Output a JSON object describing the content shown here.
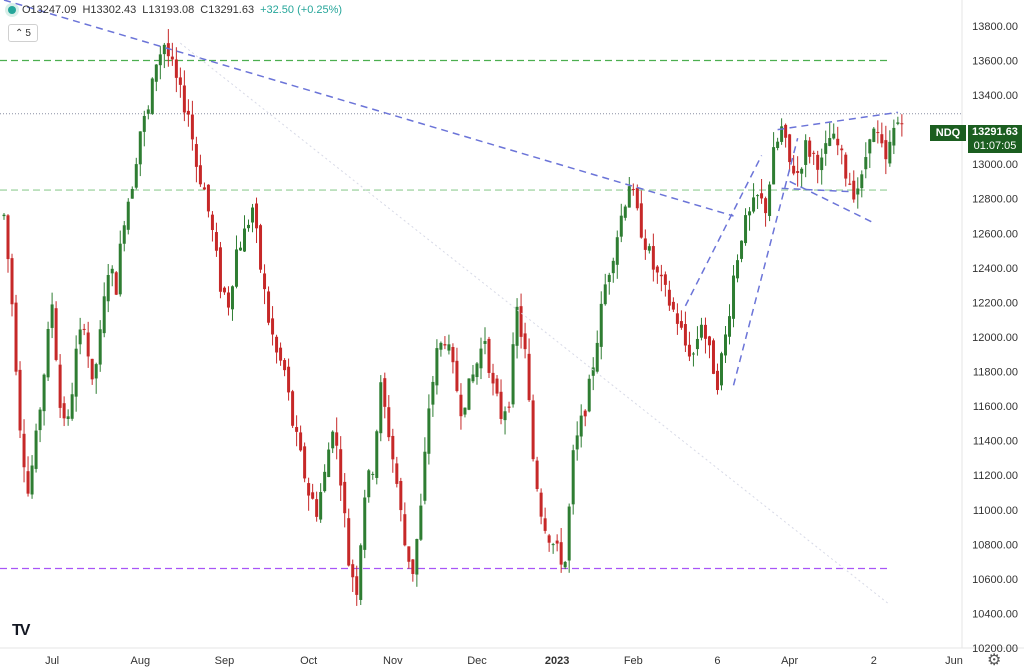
{
  "header": {
    "open": "O13247.09",
    "high": "H13302.43",
    "low": "L13193.08",
    "close": "C13291.63",
    "change": "+32.50 (+0.25%)",
    "indicators_count": "5"
  },
  "price_tag": {
    "symbol": "NDQ",
    "price": "13291.63",
    "countdown": "01:07:05"
  },
  "colors": {
    "up": "#2e7d32",
    "down": "#c62828",
    "support": "#a855f7",
    "resistance": "#4caf50",
    "trend": "#6b74d8"
  },
  "chart_data": {
    "type": "candlestick",
    "title": "",
    "ylim": [
      10200,
      13950
    ],
    "y_ticks": [
      10200,
      10400,
      10600,
      10800,
      11000,
      11200,
      11400,
      11600,
      11800,
      12000,
      12200,
      12400,
      12600,
      12800,
      13000,
      13200,
      13400,
      13600,
      13800
    ],
    "y_tick_labels": [
      "10200.00",
      "10400.00",
      "10600.00",
      "10800.00",
      "11000.00",
      "11200.00",
      "11400.00",
      "11600.00",
      "11800.00",
      "12000.00",
      "12200.00",
      "12400.00",
      "12600.00",
      "12800.00",
      "13000.00",
      "13200.00",
      "13400.00",
      "13600.00",
      "13800.00"
    ],
    "x_tick_labels": [
      "Jul",
      "Aug",
      "Sep",
      "Oct",
      "Nov",
      "Dec",
      "2023",
      "Feb",
      "6",
      "Apr",
      "2",
      "Jun"
    ],
    "x_tick_index": [
      12,
      34,
      55,
      76,
      97,
      118,
      138,
      157,
      178,
      196,
      217,
      237
    ],
    "bars_total": 240,
    "levels": [
      {
        "name": "resistance-high",
        "value": 13600,
        "style": "dashed",
        "color": "#4caf50"
      },
      {
        "name": "resistance-mid",
        "value": 12850,
        "style": "dashed",
        "color": "#a5d6a7"
      },
      {
        "name": "support-low",
        "value": 10660,
        "style": "dashed",
        "color": "#a855f7"
      },
      {
        "name": "last-price",
        "value": 13291.63,
        "style": "dotted",
        "color": "#8a8fa3"
      }
    ],
    "trendlines": [
      {
        "name": "major-downtrend",
        "points": [
          [
            0,
            13950
          ],
          [
            182,
            12700
          ]
        ]
      },
      {
        "name": "faint-downtrend",
        "points": [
          [
            44,
            13700
          ],
          [
            221,
            10450
          ]
        ]
      },
      {
        "name": "wedge-upper-left",
        "points": [
          [
            170,
            12180
          ],
          [
            189,
            13050
          ]
        ]
      },
      {
        "name": "wedge-lower-left",
        "points": [
          [
            182,
            11720
          ],
          [
            198,
            13150
          ]
        ]
      },
      {
        "name": "channel-top",
        "points": [
          [
            193,
            13200
          ],
          [
            223,
            13300
          ]
        ]
      },
      {
        "name": "channel-bottom",
        "points": [
          [
            196,
            12900
          ],
          [
            217,
            12660
          ]
        ]
      },
      {
        "name": "channel-mid",
        "points": [
          [
            194,
            12860
          ],
          [
            212,
            12840
          ]
        ]
      }
    ],
    "anchors": [
      [
        0,
        12700
      ],
      [
        2,
        12200
      ],
      [
        4,
        11500
      ],
      [
        6,
        11100
      ],
      [
        8,
        11400
      ],
      [
        10,
        11800
      ],
      [
        12,
        12200
      ],
      [
        14,
        11600
      ],
      [
        16,
        11500
      ],
      [
        18,
        11900
      ],
      [
        20,
        12100
      ],
      [
        22,
        11700
      ],
      [
        24,
        12000
      ],
      [
        26,
        12400
      ],
      [
        28,
        12300
      ],
      [
        30,
        12700
      ],
      [
        32,
        12900
      ],
      [
        34,
        13200
      ],
      [
        36,
        13300
      ],
      [
        38,
        13600
      ],
      [
        40,
        13700
      ],
      [
        42,
        13550
      ],
      [
        44,
        13400
      ],
      [
        46,
        13300
      ],
      [
        48,
        13000
      ],
      [
        50,
        12850
      ],
      [
        52,
        12600
      ],
      [
        54,
        12300
      ],
      [
        56,
        12200
      ],
      [
        58,
        12500
      ],
      [
        60,
        12600
      ],
      [
        62,
        12750
      ],
      [
        64,
        12400
      ],
      [
        66,
        12100
      ],
      [
        68,
        11900
      ],
      [
        70,
        11800
      ],
      [
        72,
        11500
      ],
      [
        74,
        11300
      ],
      [
        76,
        11100
      ],
      [
        78,
        11000
      ],
      [
        80,
        11200
      ],
      [
        82,
        11500
      ],
      [
        84,
        11200
      ],
      [
        86,
        10700
      ],
      [
        88,
        10550
      ],
      [
        90,
        11100
      ],
      [
        92,
        11250
      ],
      [
        94,
        11700
      ],
      [
        96,
        11450
      ],
      [
        98,
        11150
      ],
      [
        100,
        10800
      ],
      [
        102,
        10650
      ],
      [
        104,
        11000
      ],
      [
        106,
        11600
      ],
      [
        108,
        11900
      ],
      [
        110,
        12000
      ],
      [
        112,
        11800
      ],
      [
        114,
        11600
      ],
      [
        116,
        11700
      ],
      [
        118,
        11850
      ],
      [
        120,
        12000
      ],
      [
        122,
        11700
      ],
      [
        124,
        11550
      ],
      [
        126,
        11650
      ],
      [
        128,
        12150
      ],
      [
        130,
        11900
      ],
      [
        132,
        11300
      ],
      [
        134,
        11000
      ],
      [
        136,
        10850
      ],
      [
        138,
        10750
      ],
      [
        140,
        10700
      ],
      [
        142,
        11300
      ],
      [
        144,
        11500
      ],
      [
        146,
        11700
      ],
      [
        148,
        12000
      ],
      [
        150,
        12300
      ],
      [
        152,
        12500
      ],
      [
        154,
        12700
      ],
      [
        156,
        12900
      ],
      [
        158,
        12700
      ],
      [
        160,
        12550
      ],
      [
        162,
        12400
      ],
      [
        164,
        12300
      ],
      [
        166,
        12200
      ],
      [
        168,
        12100
      ],
      [
        170,
        11950
      ],
      [
        172,
        11900
      ],
      [
        174,
        12100
      ],
      [
        176,
        11900
      ],
      [
        178,
        11750
      ],
      [
        180,
        12000
      ],
      [
        182,
        12350
      ],
      [
        184,
        12600
      ],
      [
        186,
        12700
      ],
      [
        188,
        12800
      ],
      [
        190,
        12750
      ],
      [
        192,
        13050
      ],
      [
        194,
        13200
      ],
      [
        196,
        13000
      ],
      [
        198,
        12950
      ],
      [
        200,
        13100
      ],
      [
        202,
        13050
      ],
      [
        204,
        13000
      ],
      [
        206,
        13150
      ],
      [
        208,
        13100
      ],
      [
        210,
        12950
      ],
      [
        212,
        12850
      ],
      [
        214,
        12900
      ],
      [
        216,
        13200
      ],
      [
        218,
        13150
      ],
      [
        220,
        13000
      ],
      [
        222,
        13200
      ],
      [
        224,
        13291.63
      ]
    ]
  }
}
